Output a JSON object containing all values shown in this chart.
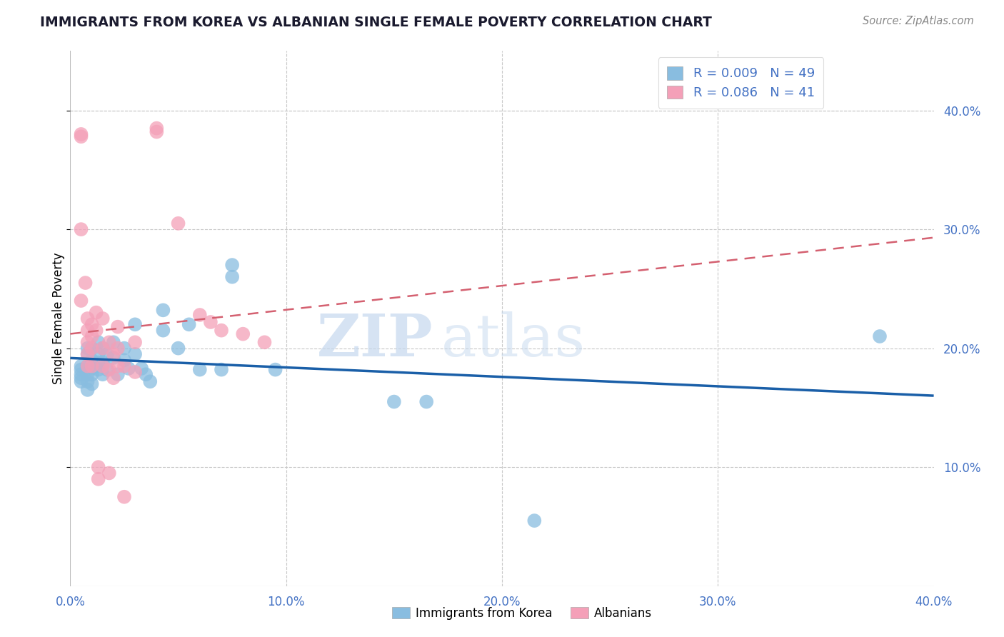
{
  "title": "IMMIGRANTS FROM KOREA VS ALBANIAN SINGLE FEMALE POVERTY CORRELATION CHART",
  "source": "Source: ZipAtlas.com",
  "ylabel": "Single Female Poverty",
  "legend_entries": [
    {
      "label": "Immigrants from Korea",
      "color": "#aec6e8",
      "R": 0.009,
      "N": 49
    },
    {
      "label": "Albanians",
      "color": "#f4a7b9",
      "R": 0.086,
      "N": 41
    }
  ],
  "watermark_zip": "ZIP",
  "watermark_atlas": "atlas",
  "background_color": "#ffffff",
  "grid_color": "#c8c8c8",
  "xlim": [
    0.0,
    0.4
  ],
  "ylim": [
    0.0,
    0.45
  ],
  "yticks": [
    0.1,
    0.2,
    0.3,
    0.4
  ],
  "xticks": [
    0.0,
    0.1,
    0.2,
    0.3,
    0.4
  ],
  "korea_color": "#89bde0",
  "albanian_color": "#f4a0b8",
  "korea_line_color": "#1a5fa8",
  "albanian_line_color": "#d46070",
  "korea_scatter": [
    [
      0.005,
      0.185
    ],
    [
      0.005,
      0.182
    ],
    [
      0.005,
      0.178
    ],
    [
      0.005,
      0.175
    ],
    [
      0.005,
      0.172
    ],
    [
      0.008,
      0.2
    ],
    [
      0.008,
      0.195
    ],
    [
      0.008,
      0.185
    ],
    [
      0.008,
      0.178
    ],
    [
      0.008,
      0.172
    ],
    [
      0.008,
      0.165
    ],
    [
      0.01,
      0.2
    ],
    [
      0.01,
      0.19
    ],
    [
      0.01,
      0.183
    ],
    [
      0.01,
      0.178
    ],
    [
      0.01,
      0.17
    ],
    [
      0.013,
      0.205
    ],
    [
      0.013,
      0.195
    ],
    [
      0.013,
      0.188
    ],
    [
      0.013,
      0.182
    ],
    [
      0.015,
      0.2
    ],
    [
      0.015,
      0.188
    ],
    [
      0.015,
      0.178
    ],
    [
      0.017,
      0.195
    ],
    [
      0.017,
      0.182
    ],
    [
      0.02,
      0.205
    ],
    [
      0.02,
      0.192
    ],
    [
      0.022,
      0.178
    ],
    [
      0.025,
      0.2
    ],
    [
      0.025,
      0.19
    ],
    [
      0.027,
      0.183
    ],
    [
      0.03,
      0.22
    ],
    [
      0.03,
      0.195
    ],
    [
      0.033,
      0.183
    ],
    [
      0.035,
      0.178
    ],
    [
      0.037,
      0.172
    ],
    [
      0.043,
      0.232
    ],
    [
      0.043,
      0.215
    ],
    [
      0.05,
      0.2
    ],
    [
      0.055,
      0.22
    ],
    [
      0.06,
      0.182
    ],
    [
      0.07,
      0.182
    ],
    [
      0.075,
      0.27
    ],
    [
      0.075,
      0.26
    ],
    [
      0.095,
      0.182
    ],
    [
      0.15,
      0.155
    ],
    [
      0.165,
      0.155
    ],
    [
      0.215,
      0.055
    ],
    [
      0.375,
      0.21
    ]
  ],
  "albanian_scatter": [
    [
      0.005,
      0.38
    ],
    [
      0.005,
      0.378
    ],
    [
      0.005,
      0.3
    ],
    [
      0.005,
      0.24
    ],
    [
      0.007,
      0.255
    ],
    [
      0.008,
      0.225
    ],
    [
      0.008,
      0.215
    ],
    [
      0.008,
      0.205
    ],
    [
      0.008,
      0.195
    ],
    [
      0.008,
      0.185
    ],
    [
      0.01,
      0.22
    ],
    [
      0.01,
      0.21
    ],
    [
      0.01,
      0.2
    ],
    [
      0.01,
      0.185
    ],
    [
      0.012,
      0.23
    ],
    [
      0.012,
      0.215
    ],
    [
      0.013,
      0.1
    ],
    [
      0.013,
      0.09
    ],
    [
      0.015,
      0.225
    ],
    [
      0.015,
      0.2
    ],
    [
      0.015,
      0.185
    ],
    [
      0.018,
      0.205
    ],
    [
      0.018,
      0.182
    ],
    [
      0.018,
      0.095
    ],
    [
      0.02,
      0.195
    ],
    [
      0.02,
      0.175
    ],
    [
      0.022,
      0.218
    ],
    [
      0.022,
      0.2
    ],
    [
      0.022,
      0.185
    ],
    [
      0.025,
      0.185
    ],
    [
      0.025,
      0.075
    ],
    [
      0.03,
      0.205
    ],
    [
      0.03,
      0.18
    ],
    [
      0.04,
      0.385
    ],
    [
      0.04,
      0.382
    ],
    [
      0.05,
      0.305
    ],
    [
      0.06,
      0.228
    ],
    [
      0.065,
      0.222
    ],
    [
      0.07,
      0.215
    ],
    [
      0.08,
      0.212
    ],
    [
      0.09,
      0.205
    ]
  ]
}
